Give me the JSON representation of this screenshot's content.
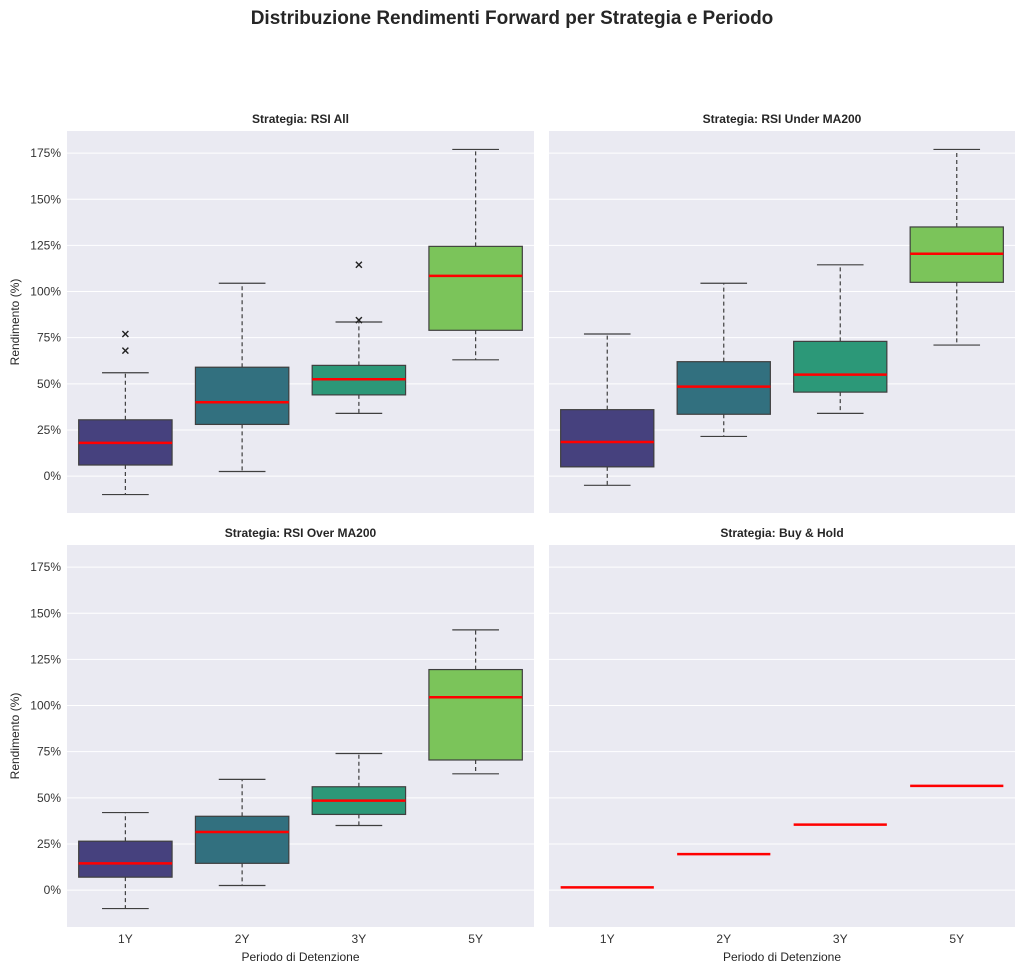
{
  "figure": {
    "title": "Distribuzione Rendimenti Forward per Strategia e Periodo"
  },
  "theme": {
    "panel_bg": "#eaeaf2",
    "grid": "#ffffff",
    "median": "#ff0000",
    "edge": "#3f3f3f",
    "text": "#262626",
    "tick_text": "#333333",
    "palette": [
      "#46417e",
      "#32707f",
      "#2c9878",
      "#7bc45a"
    ]
  },
  "chart_data": [
    {
      "type": "box",
      "title": "Strategia: RSI All",
      "xlabel": "",
      "ylabel": "Rendimento (%)",
      "categories": [
        "1Y",
        "2Y",
        "3Y",
        "5Y"
      ],
      "ylim": [
        -20,
        187
      ],
      "yticks": [
        0,
        25,
        50,
        75,
        100,
        125,
        150,
        175
      ],
      "ytick_labels": [
        "0%",
        "25%",
        "50%",
        "75%",
        "100%",
        "125%",
        "150%",
        "175%"
      ],
      "boxes": [
        {
          "category": "1Y",
          "whisker_low": -10,
          "q1": 6,
          "median": 18,
          "q3": 30.5,
          "whisker_high": 56,
          "outliers": [
            68,
            77
          ]
        },
        {
          "category": "2Y",
          "whisker_low": 2.5,
          "q1": 28,
          "median": 40,
          "q3": 59,
          "whisker_high": 104.5,
          "outliers": []
        },
        {
          "category": "3Y",
          "whisker_low": 34,
          "q1": 44,
          "median": 52.5,
          "q3": 60,
          "whisker_high": 83.5,
          "outliers": [
            84.5,
            114.5
          ]
        },
        {
          "category": "5Y",
          "whisker_low": 63,
          "q1": 79,
          "median": 108.5,
          "q3": 124.5,
          "whisker_high": 177,
          "outliers": []
        }
      ]
    },
    {
      "type": "box",
      "title": "Strategia: RSI Under MA200",
      "xlabel": "",
      "ylabel": "",
      "categories": [
        "1Y",
        "2Y",
        "3Y",
        "5Y"
      ],
      "ylim": [
        -20,
        187
      ],
      "yticks": [
        0,
        25,
        50,
        75,
        100,
        125,
        150,
        175
      ],
      "ytick_labels": [],
      "boxes": [
        {
          "category": "1Y",
          "whisker_low": -5,
          "q1": 5,
          "median": 18.5,
          "q3": 36,
          "whisker_high": 77,
          "outliers": []
        },
        {
          "category": "2Y",
          "whisker_low": 21.5,
          "q1": 33.5,
          "median": 48.5,
          "q3": 62,
          "whisker_high": 104.5,
          "outliers": []
        },
        {
          "category": "3Y",
          "whisker_low": 34,
          "q1": 45.5,
          "median": 55,
          "q3": 73,
          "whisker_high": 114.5,
          "outliers": []
        },
        {
          "category": "5Y",
          "whisker_low": 71,
          "q1": 105,
          "median": 120.5,
          "q3": 135,
          "whisker_high": 177,
          "outliers": []
        }
      ]
    },
    {
      "type": "box",
      "title": "Strategia: RSI Over MA200",
      "xlabel": "Periodo di Detenzione",
      "ylabel": "Rendimento (%)",
      "categories": [
        "1Y",
        "2Y",
        "3Y",
        "5Y"
      ],
      "ylim": [
        -20,
        187
      ],
      "yticks": [
        0,
        25,
        50,
        75,
        100,
        125,
        150,
        175
      ],
      "ytick_labels": [
        "0%",
        "25%",
        "50%",
        "75%",
        "100%",
        "125%",
        "150%",
        "175%"
      ],
      "boxes": [
        {
          "category": "1Y",
          "whisker_low": -10,
          "q1": 7,
          "median": 14.5,
          "q3": 26.5,
          "whisker_high": 42,
          "outliers": []
        },
        {
          "category": "2Y",
          "whisker_low": 2.5,
          "q1": 14.5,
          "median": 31.5,
          "q3": 40,
          "whisker_high": 60,
          "outliers": []
        },
        {
          "category": "3Y",
          "whisker_low": 35,
          "q1": 41,
          "median": 48.5,
          "q3": 56,
          "whisker_high": 74,
          "outliers": []
        },
        {
          "category": "5Y",
          "whisker_low": 63,
          "q1": 70.5,
          "median": 104.5,
          "q3": 119.5,
          "whisker_high": 141,
          "outliers": []
        }
      ]
    },
    {
      "type": "box",
      "title": "Strategia: Buy & Hold",
      "xlabel": "Periodo di Detenzione",
      "ylabel": "",
      "categories": [
        "1Y",
        "2Y",
        "3Y",
        "5Y"
      ],
      "ylim": [
        -20,
        187
      ],
      "yticks": [
        0,
        25,
        50,
        75,
        100,
        125,
        150,
        175
      ],
      "ytick_labels": [],
      "boxes": [
        {
          "category": "1Y",
          "median": 1.5
        },
        {
          "category": "2Y",
          "median": 19.5
        },
        {
          "category": "3Y",
          "median": 35.5
        },
        {
          "category": "5Y",
          "median": 56.5
        }
      ]
    }
  ]
}
